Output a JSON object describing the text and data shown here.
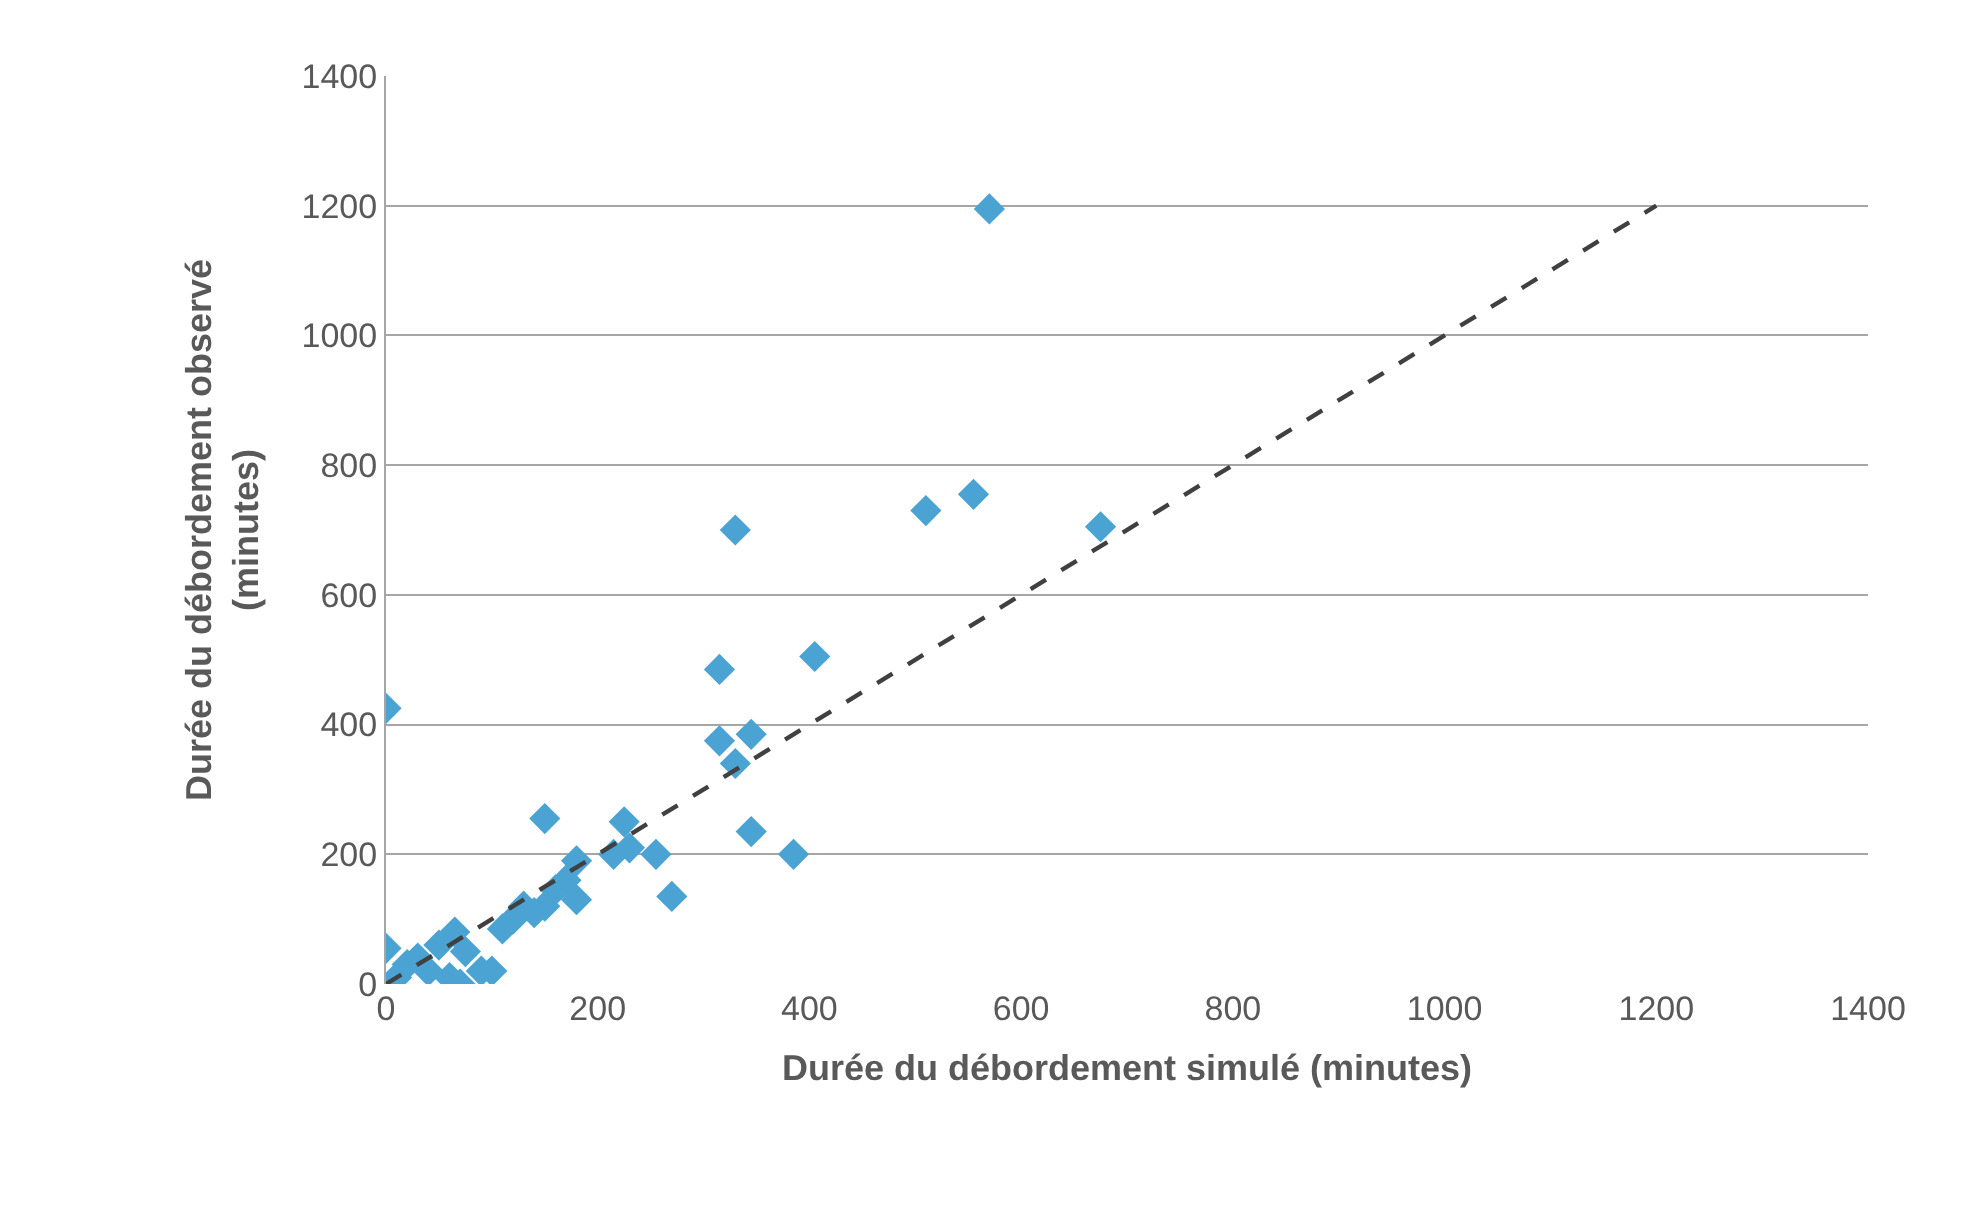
{
  "chart_data": {
    "type": "scatter",
    "xlabel": "Durée du débordement simulé (minutes)",
    "ylabel": "Durée du débordement observé\n(minutes)",
    "xlim": [
      0,
      1400
    ],
    "ylim": [
      0,
      1400
    ],
    "xticks": [
      0,
      200,
      400,
      600,
      800,
      1000,
      1200,
      1400
    ],
    "yticks": [
      0,
      200,
      400,
      600,
      800,
      1000,
      1200,
      1400
    ],
    "grid": "y",
    "marker": "diamond",
    "series": [
      {
        "color": "#4ba3d3",
        "x": [
          0,
          570,
          510,
          555,
          675,
          330,
          405,
          315,
          315,
          345,
          330,
          345,
          385,
          150,
          225,
          255,
          270,
          215,
          230,
          180,
          170,
          180,
          160,
          150,
          140,
          130,
          120,
          110,
          100,
          0,
          10,
          20,
          40,
          60,
          50,
          70,
          75,
          65,
          30,
          90
        ],
        "values": [
          425,
          1195,
          730,
          755,
          705,
          700,
          505,
          485,
          375,
          385,
          340,
          235,
          200,
          255,
          250,
          200,
          135,
          200,
          210,
          190,
          160,
          130,
          145,
          120,
          110,
          120,
          100,
          85,
          20,
          55,
          10,
          30,
          20,
          10,
          60,
          0,
          50,
          80,
          40,
          20
        ]
      },
      {
        "type": "line",
        "color": "#404040",
        "line_style": "dashed",
        "marker": "none",
        "x": [
          0,
          1200
        ],
        "values": [
          0,
          1200
        ]
      }
    ]
  }
}
